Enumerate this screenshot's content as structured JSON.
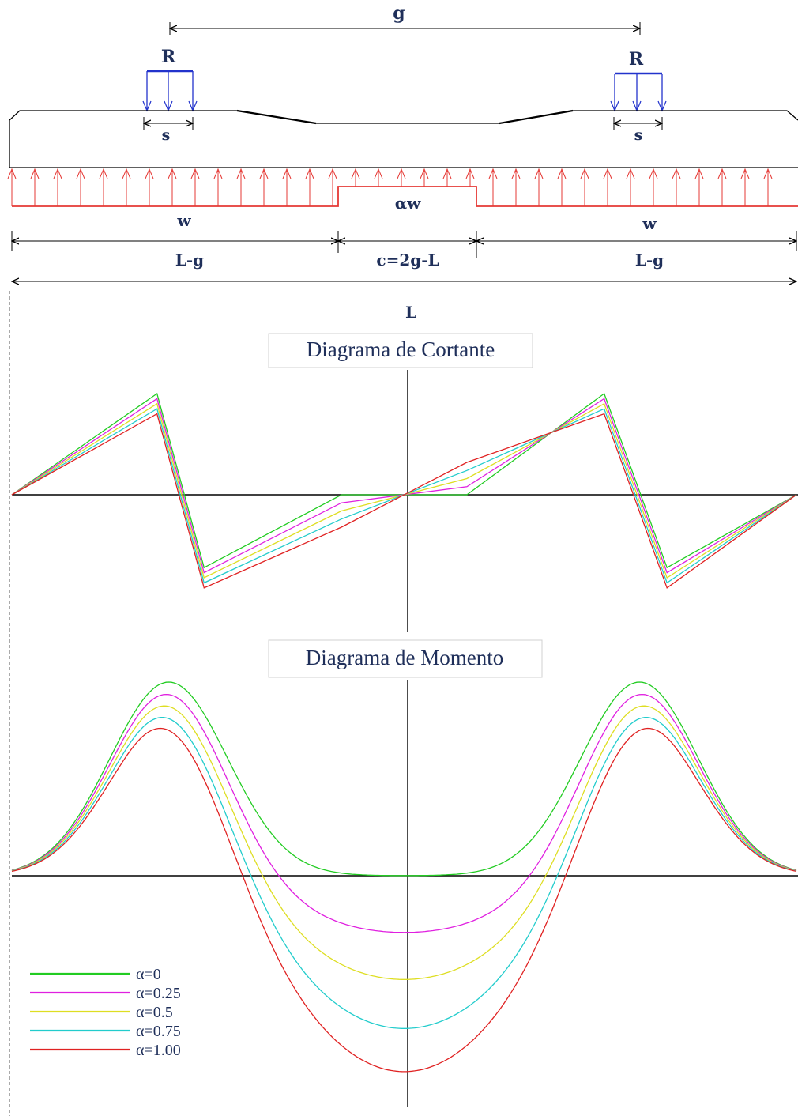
{
  "labels": {
    "g": "g",
    "R_left": "R",
    "R_right": "R",
    "s_left": "s",
    "s_right": "s",
    "aw": "αw",
    "w_left": "w",
    "w_right": "w",
    "Lg_left": "L-g",
    "c": "c=2g-L",
    "Lg_right": "L-g",
    "L": "L"
  },
  "titles": {
    "shear": "Diagrama de Cortante",
    "moment": "Diagrama de Momento"
  },
  "colors": {
    "load_red": "#e53935",
    "load_blue": "#2233cc",
    "navy": "#1f2f5a"
  },
  "legend": [
    {
      "label": "α=0",
      "color": "#22cc22"
    },
    {
      "label": "α=0.25",
      "color": "#e020e0"
    },
    {
      "label": "α=0.5",
      "color": "#dede22"
    },
    {
      "label": "α=0.75",
      "color": "#22cccc"
    },
    {
      "label": "α=1.00",
      "color": "#e02222"
    }
  ],
  "chart_data": [
    {
      "type": "line",
      "title": "Diagrama de Cortante",
      "x_domain": [
        0,
        1
      ],
      "grid": false,
      "series": [
        {
          "name": "α=0",
          "color": "#22cc22",
          "x": [
            0,
            0.185,
            0.245,
            0.42,
            0.58,
            0.755,
            0.835,
            1
          ],
          "y": [
            0,
            1.0,
            -0.72,
            0,
            0,
            1.0,
            -0.72,
            0
          ]
        },
        {
          "name": "α=0.25",
          "color": "#e020e0",
          "x": [
            0,
            0.185,
            0.245,
            0.42,
            0.58,
            0.755,
            0.835,
            1
          ],
          "y": [
            0,
            0.95,
            -0.77,
            -0.08,
            0.08,
            0.95,
            -0.77,
            0
          ]
        },
        {
          "name": "α=0.5",
          "color": "#dede22",
          "x": [
            0,
            0.185,
            0.245,
            0.42,
            0.58,
            0.755,
            0.835,
            1
          ],
          "y": [
            0,
            0.9,
            -0.82,
            -0.16,
            0.16,
            0.9,
            -0.82,
            0
          ]
        },
        {
          "name": "α=0.75",
          "color": "#22cccc",
          "x": [
            0,
            0.185,
            0.245,
            0.42,
            0.58,
            0.755,
            0.835,
            1
          ],
          "y": [
            0,
            0.85,
            -0.87,
            -0.24,
            0.24,
            0.85,
            -0.87,
            0
          ]
        },
        {
          "name": "α=1.00",
          "color": "#e02222",
          "x": [
            0,
            0.185,
            0.245,
            0.42,
            0.58,
            0.755,
            0.835,
            1
          ],
          "y": [
            0,
            0.8,
            -0.92,
            -0.32,
            0.32,
            0.8,
            -0.92,
            0
          ]
        }
      ]
    },
    {
      "type": "line",
      "title": "Diagrama de Momento",
      "x_domain": [
        0,
        1
      ],
      "grid": false,
      "series": [
        {
          "name": "α=0",
          "color": "#22cc22",
          "peak": 1.0,
          "mid": 0.0
        },
        {
          "name": "α=0.25",
          "color": "#e020e0",
          "peak": 0.95,
          "mid": -0.29
        },
        {
          "name": "α=0.5",
          "color": "#dede22",
          "peak": 0.9,
          "mid": -0.53
        },
        {
          "name": "α=0.75",
          "color": "#22cccc",
          "peak": 0.85,
          "mid": -0.78
        },
        {
          "name": "α=1.00",
          "color": "#e02222",
          "peak": 0.8,
          "mid": -1.0
        }
      ]
    }
  ]
}
